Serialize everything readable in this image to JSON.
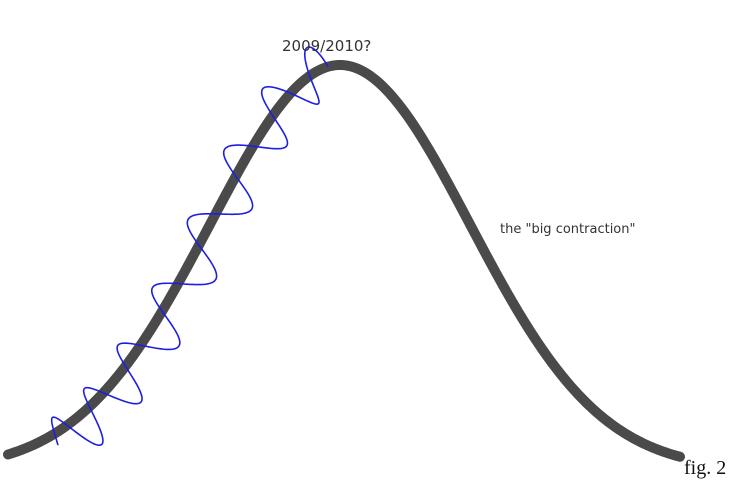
{
  "labels": {
    "peak": "2009/2010?",
    "decline": "the \"big contraction\"",
    "figure": "fig. 2"
  }
}
